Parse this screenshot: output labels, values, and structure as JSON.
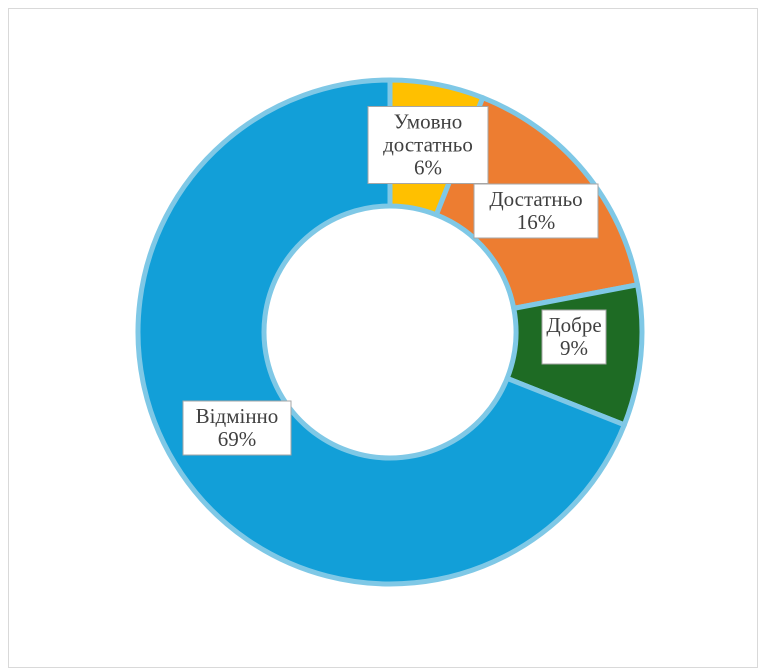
{
  "chart_data": {
    "type": "pie",
    "subtype": "doughnut",
    "categories": [
      "Умовно достатньо",
      "Достатньо",
      "Добре",
      "Відмінно"
    ],
    "values": [
      6,
      16,
      9,
      69
    ],
    "labels": [
      {
        "name_lines": [
          "Умовно",
          "достатньо"
        ],
        "percent": "6%"
      },
      {
        "name_lines": [
          "Достатньо"
        ],
        "percent": "16%"
      },
      {
        "name_lines": [
          "Добре"
        ],
        "percent": "9%"
      },
      {
        "name_lines": [
          "Відмінно"
        ],
        "percent": "69%"
      }
    ],
    "colors": [
      "#ffc000",
      "#ed7d31",
      "#1e6b24",
      "#129fd8"
    ],
    "border_color": "#7fc8e6",
    "title": "",
    "legend": "none"
  }
}
